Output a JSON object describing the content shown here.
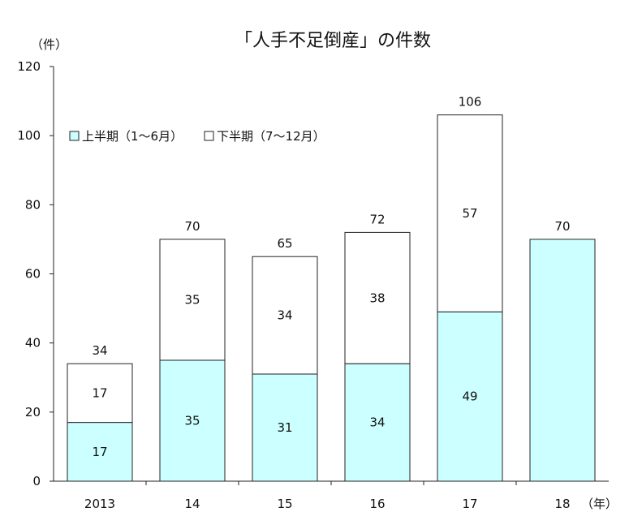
{
  "chart_data": {
    "type": "bar",
    "stacked": true,
    "title": "「人手不足倒産」の件数",
    "y_unit": "（件）",
    "x_unit": "（年）",
    "categories": [
      "2013",
      "14",
      "15",
      "16",
      "17",
      "18"
    ],
    "series": [
      {
        "name": "上半期（1～6月）",
        "values": [
          17,
          35,
          31,
          34,
          49,
          70
        ],
        "color": "#ccffff"
      },
      {
        "name": "下半期（7～12月）",
        "values": [
          17,
          35,
          34,
          38,
          57,
          null
        ],
        "color": "#ffffff"
      }
    ],
    "totals": [
      34,
      70,
      65,
      72,
      106,
      70
    ],
    "ylim": [
      0,
      120
    ],
    "yticks": [
      0,
      20,
      40,
      60,
      80,
      100,
      120
    ],
    "grid": false,
    "legend": "top-left"
  }
}
